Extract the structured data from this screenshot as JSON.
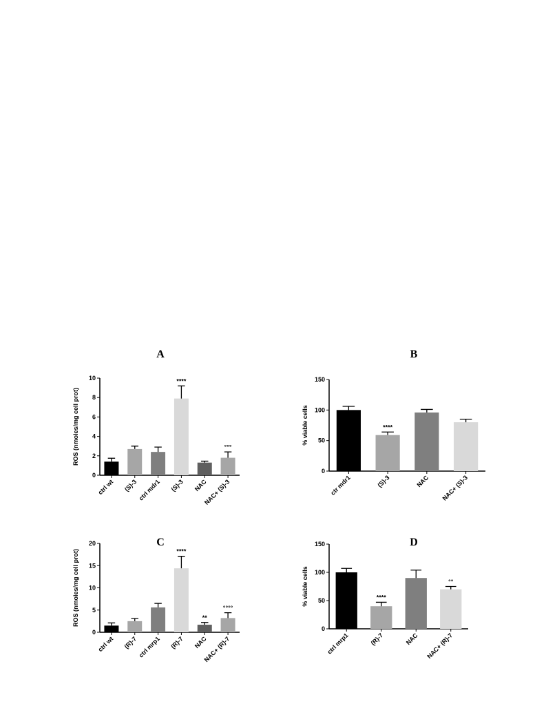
{
  "chart_data": [
    {
      "type": "bar",
      "title": "A",
      "ylabel": "ROS (nmoles/mg cell prot)",
      "categories": [
        "ctrl wt",
        "(S)-3",
        "ctrl mdr1",
        "(S)-3",
        "NAC",
        "NAC+ (S)-3"
      ],
      "values": [
        1.4,
        2.7,
        2.4,
        7.9,
        1.3,
        1.8
      ],
      "errors": [
        0.35,
        0.3,
        0.5,
        1.3,
        0.15,
        0.6
      ],
      "colors": [
        "#000000",
        "#a6a6a6",
        "#7f7f7f",
        "#d9d9d9",
        "#5f5f5f",
        "#a6a6a6"
      ],
      "annotations": [
        null,
        null,
        null,
        "****",
        null,
        "°°°"
      ],
      "ylim": [
        0,
        10
      ],
      "yticks": [
        0,
        2,
        4,
        6,
        8,
        10
      ]
    },
    {
      "type": "bar",
      "title": "B",
      "ylabel": "% viable cells",
      "categories": [
        "ctr mdr1",
        "(S)-3",
        "NAC",
        "NAC+ (S)-3"
      ],
      "values": [
        100,
        59,
        96,
        80
      ],
      "errors": [
        6,
        5,
        5,
        5
      ],
      "colors": [
        "#000000",
        "#a6a6a6",
        "#7f7f7f",
        "#d9d9d9"
      ],
      "annotations": [
        null,
        "****",
        null,
        null
      ],
      "ylim": [
        0,
        150
      ],
      "yticks": [
        0,
        50,
        100,
        150
      ]
    },
    {
      "type": "bar",
      "title": "C",
      "ylabel": "ROS (nmoles/mg cell prot)",
      "categories": [
        "ctrl wt",
        "(R)-7",
        "ctrl mrp1",
        "(R)-7",
        "NAC",
        "NAC+ (R)-7"
      ],
      "values": [
        1.5,
        2.5,
        5.6,
        14.4,
        1.7,
        3.2
      ],
      "errors": [
        0.6,
        0.6,
        0.9,
        2.7,
        0.5,
        1.2
      ],
      "colors": [
        "#000000",
        "#a6a6a6",
        "#7f7f7f",
        "#d9d9d9",
        "#5f5f5f",
        "#a6a6a6"
      ],
      "annotations": [
        null,
        null,
        null,
        "****",
        "**",
        "°°°°"
      ],
      "ylim": [
        0,
        20
      ],
      "yticks": [
        0,
        5,
        10,
        15,
        20
      ]
    },
    {
      "type": "bar",
      "title": "D",
      "ylabel": "% viable cells",
      "categories": [
        "ctrl mrp1",
        "(R)-7",
        "NAC",
        "NAC+ (R)-7"
      ],
      "values": [
        100,
        40,
        90,
        70
      ],
      "errors": [
        7,
        7,
        14,
        5
      ],
      "colors": [
        "#000000",
        "#a6a6a6",
        "#7f7f7f",
        "#d9d9d9"
      ],
      "annotations": [
        null,
        "****",
        null,
        "°°"
      ],
      "ylim": [
        0,
        150
      ],
      "yticks": [
        0,
        50,
        100,
        150
      ]
    }
  ]
}
